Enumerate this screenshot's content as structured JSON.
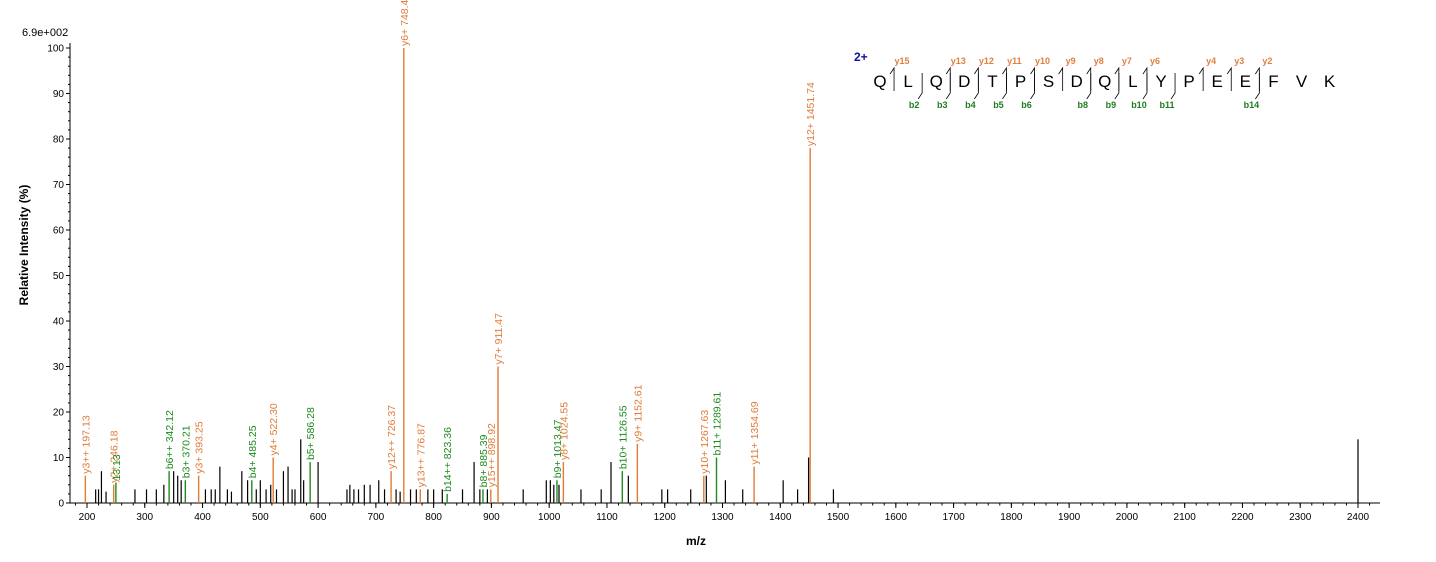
{
  "colors": {
    "y_ion": "#e07b39",
    "b_ion": "#1e8a1e",
    "unassigned": "#000000",
    "charge": "#1010a0"
  },
  "chart_data": {
    "type": "bar",
    "intensity_scale_label": "6.9e+002",
    "xlabel": "m/z",
    "ylabel": "Relative   Intensity (%)",
    "xlim": [
      175,
      2420
    ],
    "ylim": [
      0,
      100
    ],
    "x_ticks": [
      200,
      300,
      400,
      500,
      600,
      700,
      800,
      900,
      1000,
      1100,
      1200,
      1300,
      1400,
      1500,
      1600,
      1700,
      1800,
      1900,
      2000,
      2100,
      2200,
      2300,
      2400
    ],
    "y_ticks": [
      0,
      10,
      20,
      30,
      40,
      50,
      60,
      70,
      80,
      90,
      100
    ],
    "labeled_peaks": [
      {
        "mz": 197.13,
        "intensity": 6,
        "ion": "y",
        "label": "y3++ 197.13"
      },
      {
        "mz": 246.18,
        "intensity": 4,
        "ion": "y",
        "label": "y2+ 246.18"
      },
      {
        "mz": 250.0,
        "intensity": 4.5,
        "ion": "b",
        "label": "13.13"
      },
      {
        "mz": 342.12,
        "intensity": 7,
        "ion": "b",
        "label": "b6++ 342.12"
      },
      {
        "mz": 370.21,
        "intensity": 5,
        "ion": "b",
        "label": "b3+ 370.21"
      },
      {
        "mz": 393.25,
        "intensity": 6,
        "ion": "y",
        "label": "y3+ 393.25"
      },
      {
        "mz": 485.25,
        "intensity": 5,
        "ion": "b",
        "label": "b4+ 485.25"
      },
      {
        "mz": 522.3,
        "intensity": 10,
        "ion": "y",
        "label": "y4+ 522.30"
      },
      {
        "mz": 586.28,
        "intensity": 9,
        "ion": "b",
        "label": "b5+ 586.28"
      },
      {
        "mz": 726.37,
        "intensity": 7,
        "ion": "y",
        "label": "y12++ 726.37"
      },
      {
        "mz": 748.4,
        "intensity": 100,
        "ion": "y",
        "label": "y6+ 748.40"
      },
      {
        "mz": 776.87,
        "intensity": 3,
        "ion": "y",
        "label": "y13++ 776.87"
      },
      {
        "mz": 823.36,
        "intensity": 2,
        "ion": "b",
        "label": "b14++ 823.36"
      },
      {
        "mz": 885.39,
        "intensity": 3,
        "ion": "b",
        "label": "b8+ 885.39"
      },
      {
        "mz": 898.92,
        "intensity": 3,
        "ion": "y",
        "label": "y15++ 898.92"
      },
      {
        "mz": 911.47,
        "intensity": 30,
        "ion": "y",
        "label": "y7+ 911.47"
      },
      {
        "mz": 1013.47,
        "intensity": 5,
        "ion": "b",
        "label": "b9+ 1013.47"
      },
      {
        "mz": 1024.55,
        "intensity": 9,
        "ion": "y",
        "label": "y8+ 1024.55"
      },
      {
        "mz": 1126.55,
        "intensity": 7,
        "ion": "b",
        "label": "b10+ 1126.55"
      },
      {
        "mz": 1152.61,
        "intensity": 13,
        "ion": "y",
        "label": "y9+ 1152.61"
      },
      {
        "mz": 1267.63,
        "intensity": 6,
        "ion": "y",
        "label": "y10+ 1267.63"
      },
      {
        "mz": 1289.61,
        "intensity": 10,
        "ion": "b",
        "label": "b11+ 1289.61"
      },
      {
        "mz": 1354.69,
        "intensity": 8,
        "ion": "y",
        "label": "y11+ 1354.69"
      },
      {
        "mz": 1451.74,
        "intensity": 78,
        "ion": "y",
        "label": "y12+ 1451.74"
      }
    ],
    "unlabeled_peaks": [
      [
        215,
        3
      ],
      [
        220,
        3
      ],
      [
        225,
        7
      ],
      [
        233,
        2.5
      ],
      [
        283,
        3
      ],
      [
        303,
        3
      ],
      [
        320,
        3
      ],
      [
        333,
        4
      ],
      [
        350,
        7
      ],
      [
        357,
        6
      ],
      [
        363,
        5
      ],
      [
        405,
        3
      ],
      [
        415,
        3
      ],
      [
        422,
        3
      ],
      [
        430,
        8
      ],
      [
        443,
        3
      ],
      [
        450,
        2.5
      ],
      [
        468,
        7
      ],
      [
        478,
        5
      ],
      [
        493,
        3
      ],
      [
        500,
        5
      ],
      [
        510,
        3
      ],
      [
        518,
        4
      ],
      [
        528,
        3
      ],
      [
        540,
        7
      ],
      [
        548,
        8
      ],
      [
        555,
        3
      ],
      [
        560,
        3
      ],
      [
        570,
        14
      ],
      [
        575,
        5
      ],
      [
        600,
        9
      ],
      [
        650,
        3
      ],
      [
        655,
        4
      ],
      [
        662,
        3
      ],
      [
        670,
        3
      ],
      [
        680,
        4
      ],
      [
        690,
        4
      ],
      [
        705,
        5
      ],
      [
        715,
        3
      ],
      [
        735,
        3
      ],
      [
        742,
        2.5
      ],
      [
        760,
        3
      ],
      [
        770,
        3
      ],
      [
        790,
        3
      ],
      [
        800,
        3
      ],
      [
        815,
        3
      ],
      [
        850,
        3
      ],
      [
        870,
        9
      ],
      [
        880,
        3
      ],
      [
        893,
        3
      ],
      [
        955,
        3
      ],
      [
        995,
        5
      ],
      [
        1002,
        5
      ],
      [
        1008,
        4
      ],
      [
        1017,
        4
      ],
      [
        1055,
        3
      ],
      [
        1090,
        3
      ],
      [
        1107,
        9
      ],
      [
        1137,
        6
      ],
      [
        1195,
        3
      ],
      [
        1205,
        3
      ],
      [
        1245,
        3
      ],
      [
        1272,
        6
      ],
      [
        1305,
        5
      ],
      [
        1335,
        3
      ],
      [
        1405,
        5
      ],
      [
        1430,
        3
      ],
      [
        1449,
        10
      ],
      [
        1492,
        3
      ],
      [
        2400,
        14
      ]
    ],
    "sequence": {
      "charge_label": "2+",
      "residues": [
        "Q",
        "L",
        "Q",
        "D",
        "T",
        "P",
        "S",
        "D",
        "Q",
        "L",
        "Y",
        "P",
        "E",
        "E",
        "F",
        "V",
        "K"
      ],
      "y_ions": [
        {
          "after": 1,
          "label": "y15"
        },
        {
          "after": 3,
          "label": "y13"
        },
        {
          "after": 4,
          "label": "y12"
        },
        {
          "after": 5,
          "label": "y11"
        },
        {
          "after": 6,
          "label": "y10"
        },
        {
          "after": 7,
          "label": "y9"
        },
        {
          "after": 8,
          "label": "y8"
        },
        {
          "after": 9,
          "label": "y7"
        },
        {
          "after": 10,
          "label": "y6"
        },
        {
          "after": 12,
          "label": "y4"
        },
        {
          "after": 13,
          "label": "y3"
        },
        {
          "after": 14,
          "label": "y2"
        }
      ],
      "b_ions": [
        {
          "after": 2,
          "label": "b2"
        },
        {
          "after": 3,
          "label": "b3"
        },
        {
          "after": 4,
          "label": "b4"
        },
        {
          "after": 5,
          "label": "b5"
        },
        {
          "after": 6,
          "label": "b6"
        },
        {
          "after": 8,
          "label": "b8"
        },
        {
          "after": 9,
          "label": "b9"
        },
        {
          "after": 10,
          "label": "b10"
        },
        {
          "after": 11,
          "label": "b11"
        },
        {
          "after": 14,
          "label": "b14"
        }
      ]
    }
  }
}
